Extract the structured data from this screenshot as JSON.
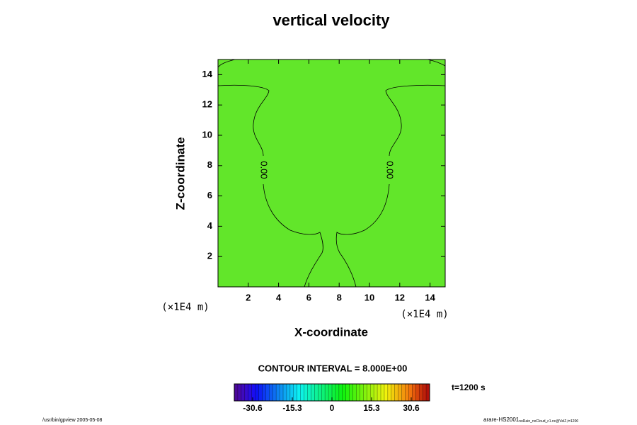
{
  "chart_data": {
    "type": "contour",
    "title": "vertical velocity",
    "xlabel": "X-coordinate",
    "ylabel": "Z-coordinate",
    "x_unit": "(×1E4 m)",
    "y_unit": "(×1E4 m)",
    "xlim": [
      0,
      15
    ],
    "ylim": [
      0,
      15
    ],
    "xticks": [
      2,
      4,
      6,
      8,
      10,
      12,
      14
    ],
    "yticks": [
      2,
      4,
      6,
      8,
      10,
      12,
      14
    ],
    "color": "#62e62a",
    "contours": [
      {
        "level": 0,
        "label": "0.00"
      }
    ],
    "contour_interval_text": "CONTOUR INTERVAL = 8.000E+00",
    "colorbar": {
      "lim": [
        -37.7,
        37.7
      ],
      "ticks": [
        -30.6,
        -15.3,
        0,
        15.3,
        30.6
      ]
    },
    "time_text": "t=1200 s",
    "footer_left": "/usr/bin/gpview 2005-05-08",
    "footer_right": "arare-HS2001",
    "footer_right_sub": "noRain_noCloud_c1.nc@VelZ,t=1200"
  }
}
